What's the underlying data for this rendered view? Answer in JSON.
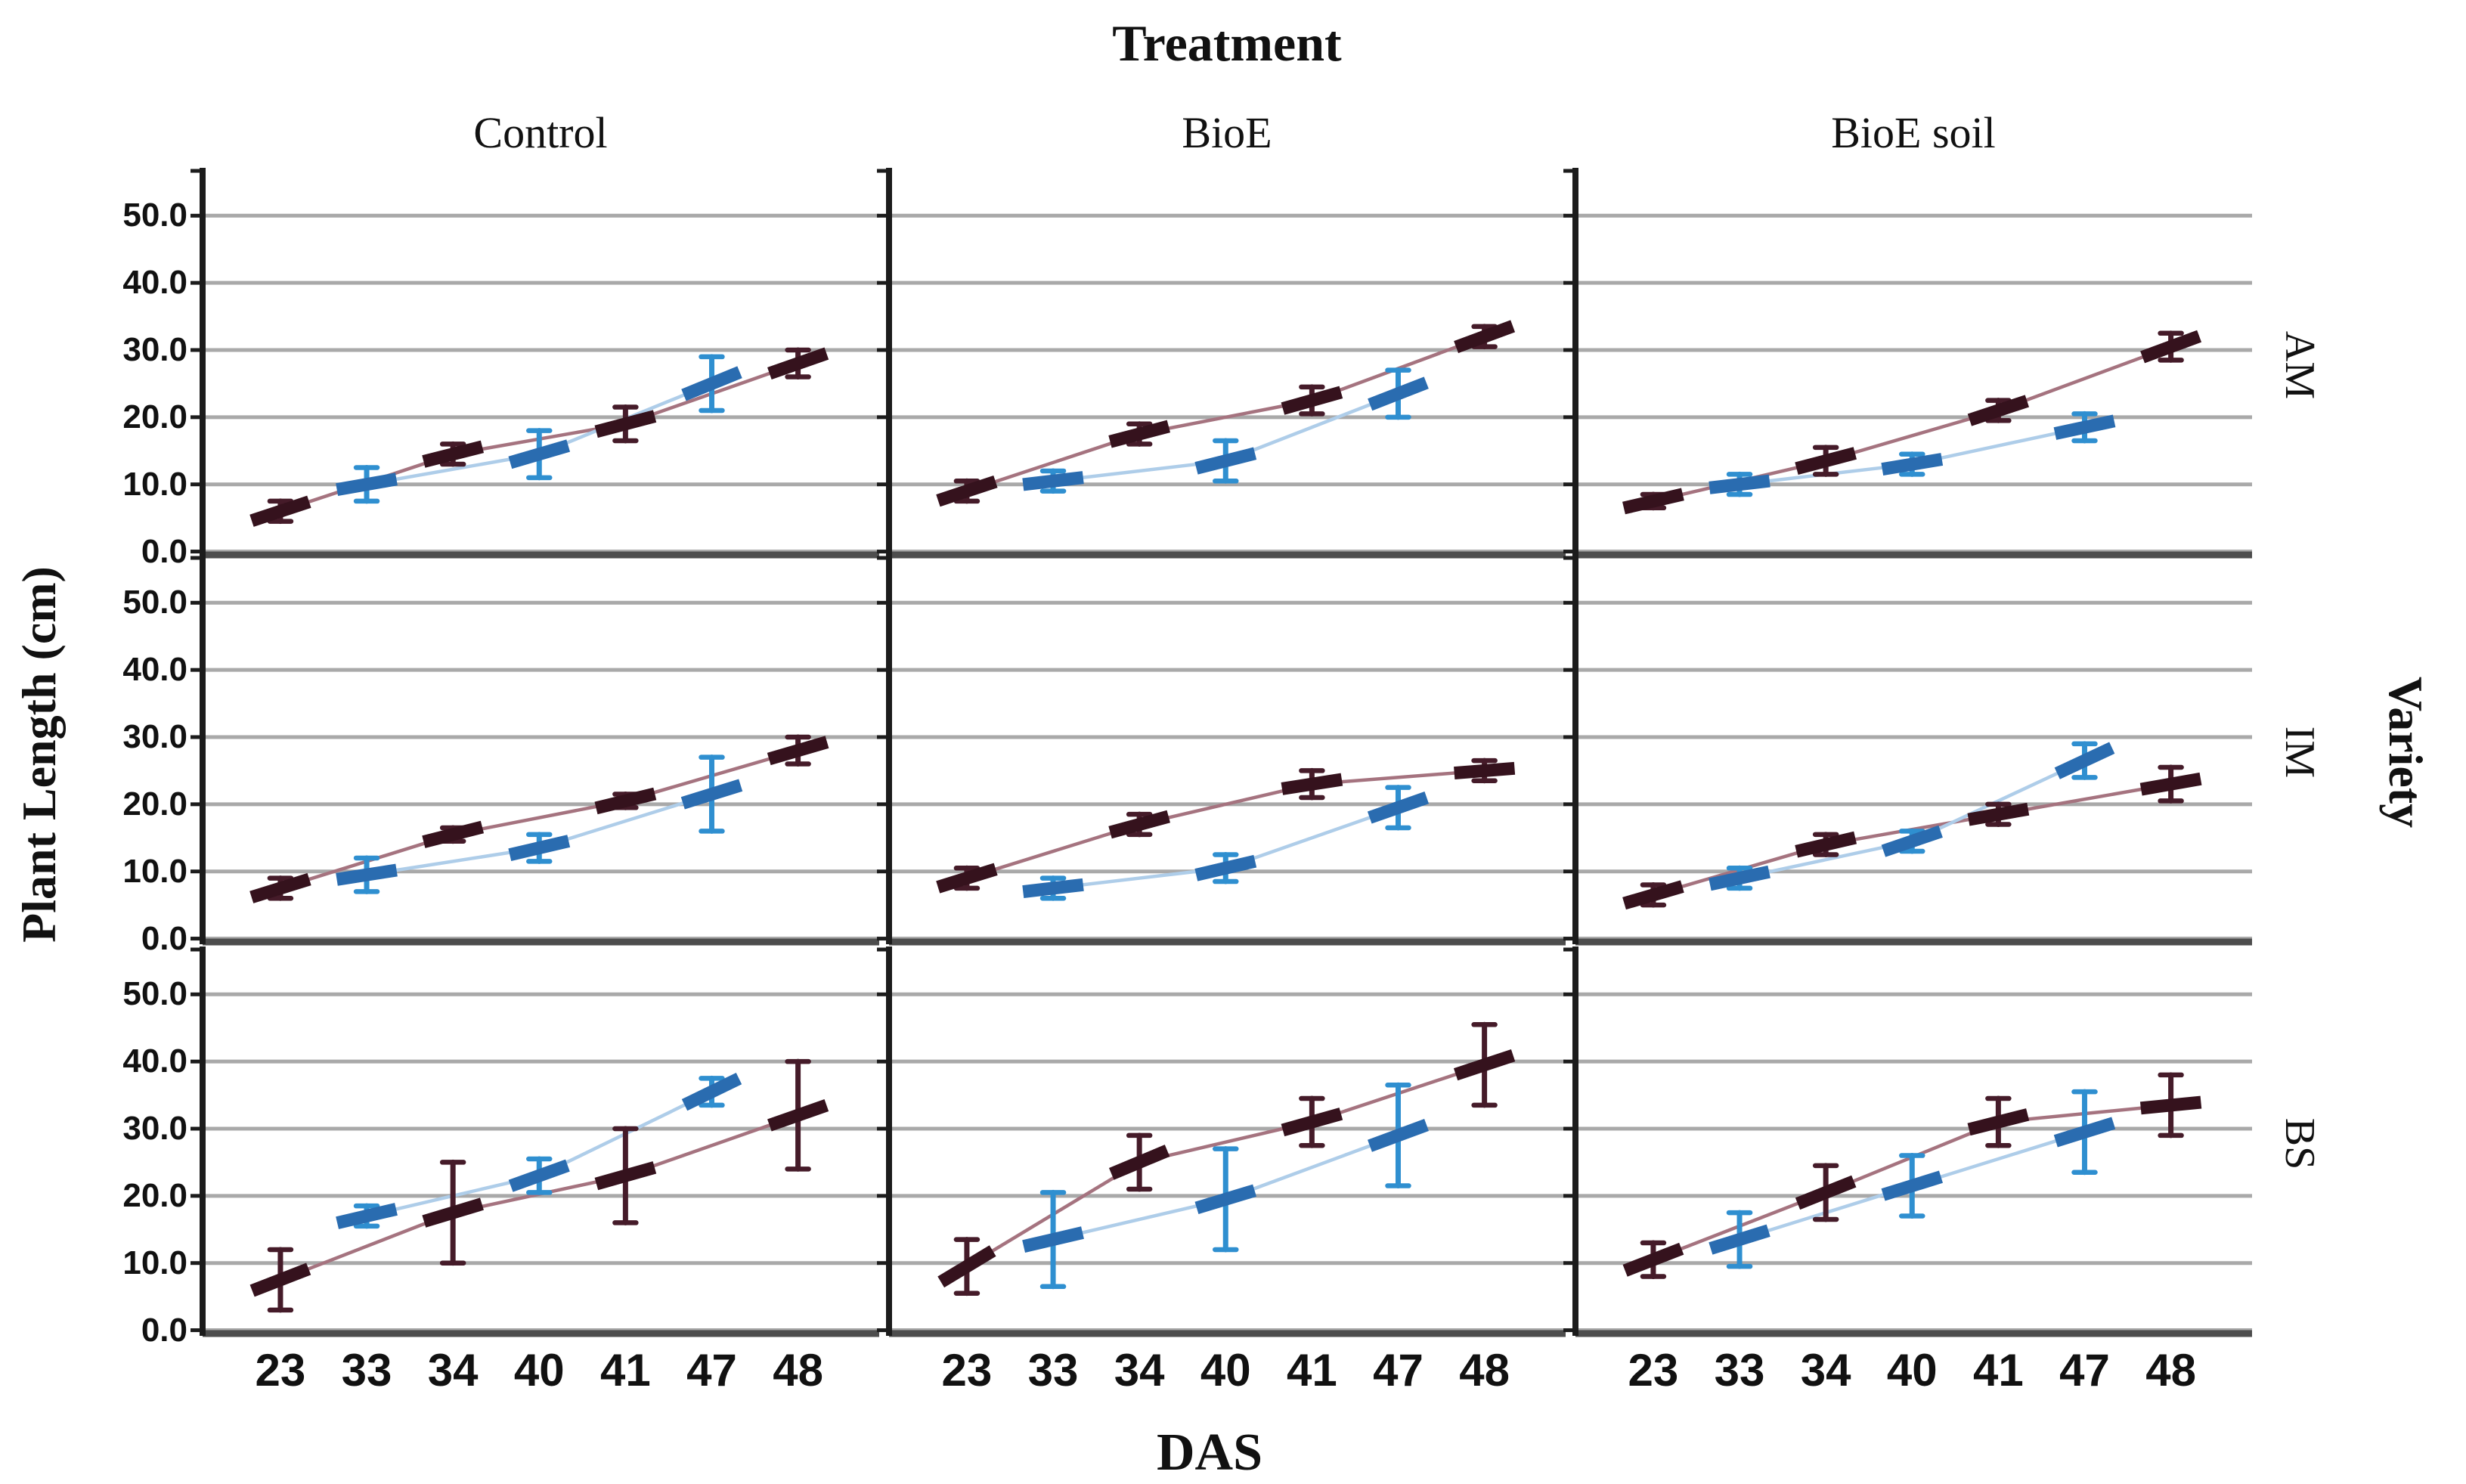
{
  "chart_data": {
    "type": "line",
    "title": "Treatment",
    "xlabel": "DAS",
    "ylabel": "Plant Length (cm)",
    "right_axis_label": "Variety",
    "facet": {
      "columns": [
        "Control",
        "BioE",
        "BioE soil"
      ],
      "rows": [
        "AM",
        "IM",
        "BS"
      ]
    },
    "x_categories": [
      "23",
      "33",
      "34",
      "40",
      "41",
      "47",
      "48"
    ],
    "y_tick_labels": [
      "50.0",
      "40.0",
      "30.0",
      "20.0",
      "10.0",
      "0.0"
    ],
    "y_gridlines": [
      0,
      10,
      20,
      30,
      40,
      50
    ],
    "ylim": [
      -0.5,
      56
    ],
    "legend": "none",
    "grid": "horizontal",
    "series_names": [
      "maroon-series",
      "blue-series"
    ],
    "colors": {
      "maroon_marker": "#35121d",
      "maroon_error": "#451b29",
      "maroon_line": "#a5737f",
      "blue_marker": "#2a6cb0",
      "blue_error": "#2f8fd0",
      "blue_line": "#aecde9",
      "gridline": "#a9a9a9",
      "axis": "#1c1c1c",
      "baseline": "#4d4d4d"
    },
    "panels": [
      {
        "treatment": "Control",
        "variety": "AM",
        "maroon": {
          "x": [
            23,
            34,
            41,
            48
          ],
          "y": [
            6,
            14.5,
            19,
            28
          ],
          "err": [
            1.5,
            1.5,
            2.5,
            2
          ]
        },
        "blue": {
          "x": [
            33,
            40,
            47
          ],
          "y": [
            10,
            14.5,
            25
          ],
          "err": [
            2.5,
            3.5,
            4
          ]
        }
      },
      {
        "treatment": "BioE",
        "variety": "AM",
        "maroon": {
          "x": [
            23,
            34,
            41,
            48
          ],
          "y": [
            9,
            17.5,
            22.5,
            32
          ],
          "err": [
            1.5,
            1.5,
            2,
            1.5
          ]
        },
        "blue": {
          "x": [
            33,
            40,
            47
          ],
          "y": [
            10.5,
            13.5,
            23.5
          ],
          "err": [
            1.5,
            3,
            3.5
          ]
        }
      },
      {
        "treatment": "BioE soil",
        "variety": "AM",
        "maroon": {
          "x": [
            23,
            34,
            41,
            48
          ],
          "y": [
            7.5,
            13.5,
            21,
            30.5
          ],
          "err": [
            1,
            2,
            1.5,
            2
          ]
        },
        "blue": {
          "x": [
            33,
            40,
            47
          ],
          "y": [
            10,
            13,
            18.5
          ],
          "err": [
            1.5,
            1.5,
            2
          ]
        }
      },
      {
        "treatment": "Control",
        "variety": "IM",
        "maroon": {
          "x": [
            23,
            34,
            41,
            48
          ],
          "y": [
            7.5,
            15.5,
            20.5,
            28
          ],
          "err": [
            1.5,
            1,
            1,
            2
          ]
        },
        "blue": {
          "x": [
            33,
            40,
            47
          ],
          "y": [
            9.5,
            13.5,
            21.5
          ],
          "err": [
            2.5,
            2,
            5.5
          ]
        }
      },
      {
        "treatment": "BioE",
        "variety": "IM",
        "maroon": {
          "x": [
            23,
            34,
            41,
            48
          ],
          "y": [
            9,
            17,
            23,
            25
          ],
          "err": [
            1.5,
            1.5,
            2,
            1.5
          ]
        },
        "blue": {
          "x": [
            33,
            40,
            47
          ],
          "y": [
            7.5,
            10.5,
            19.5
          ],
          "err": [
            1.5,
            2,
            3
          ]
        }
      },
      {
        "treatment": "BioE soil",
        "variety": "IM",
        "maroon": {
          "x": [
            23,
            34,
            41,
            48
          ],
          "y": [
            6.5,
            14,
            18.5,
            23
          ],
          "err": [
            1.5,
            1.5,
            1.5,
            2.5
          ]
        },
        "blue": {
          "x": [
            33,
            40,
            47
          ],
          "y": [
            9,
            14.5,
            26.5
          ],
          "err": [
            1.5,
            1.5,
            2.5
          ]
        }
      },
      {
        "treatment": "Control",
        "variety": "BS",
        "maroon": {
          "x": [
            23,
            34,
            41,
            48
          ],
          "y": [
            7.5,
            17.5,
            23,
            32
          ],
          "err": [
            4.5,
            7.5,
            7,
            8
          ]
        },
        "blue": {
          "x": [
            33,
            40,
            47
          ],
          "y": [
            17,
            23,
            35.5
          ],
          "err": [
            1.5,
            2.5,
            2
          ]
        }
      },
      {
        "treatment": "BioE",
        "variety": "BS",
        "maroon": {
          "x": [
            23,
            34,
            41,
            48
          ],
          "y": [
            9.5,
            25,
            31,
            39.5
          ],
          "err": [
            4,
            4,
            3.5,
            6
          ]
        },
        "blue": {
          "x": [
            33,
            40,
            47
          ],
          "y": [
            13.5,
            19.5,
            29
          ],
          "err": [
            7,
            7.5,
            7.5
          ]
        }
      },
      {
        "treatment": "BioE soil",
        "variety": "BS",
        "maroon": {
          "x": [
            23,
            34,
            41,
            48
          ],
          "y": [
            10.5,
            20.5,
            31,
            33.5
          ],
          "err": [
            2.5,
            4,
            3.5,
            4.5
          ]
        },
        "blue": {
          "x": [
            33,
            40,
            47
          ],
          "y": [
            13.5,
            21.5,
            29.5
          ],
          "err": [
            4,
            4.5,
            6
          ]
        }
      }
    ]
  }
}
